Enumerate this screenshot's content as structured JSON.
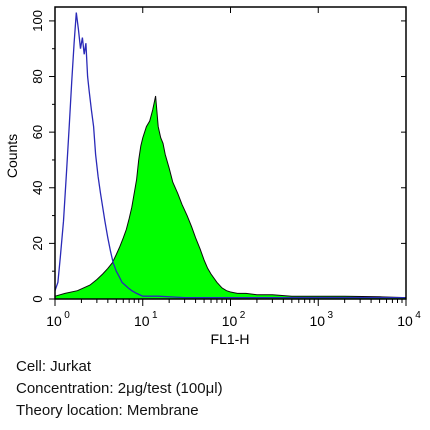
{
  "chart_data": {
    "type": "area",
    "xlabel": "FL1-H",
    "ylabel": "Counts",
    "x_scale": "log",
    "xlim": [
      1,
      10000
    ],
    "ylim": [
      0,
      105
    ],
    "x_ticks": [
      {
        "value": 1,
        "base": "10",
        "exp": "0"
      },
      {
        "value": 10,
        "base": "10",
        "exp": "1"
      },
      {
        "value": 100,
        "base": "10",
        "exp": "2"
      },
      {
        "value": 1000,
        "base": "10",
        "exp": "3"
      },
      {
        "value": 10000,
        "base": "10",
        "exp": "4"
      }
    ],
    "y_ticks": [
      "0",
      "20",
      "40",
      "60",
      "80",
      "100"
    ],
    "y_tick_values": [
      0,
      20,
      40,
      60,
      80,
      100
    ],
    "grid": false,
    "series": [
      {
        "style": "outline",
        "color": "#2a2ab8",
        "x": [
          1.0,
          1.08,
          1.15,
          1.25,
          1.35,
          1.45,
          1.55,
          1.65,
          1.75,
          1.85,
          1.95,
          2.05,
          2.15,
          2.25,
          2.35,
          2.45,
          2.6,
          2.75,
          2.9,
          3.1,
          3.3,
          3.5,
          3.7,
          4.0,
          4.3,
          4.6,
          5.0,
          5.4,
          5.8,
          6.3,
          6.8,
          7.5,
          8.5,
          10,
          15,
          30,
          100,
          1000,
          10000
        ],
        "y": [
          3,
          6,
          15,
          28,
          45,
          62,
          78,
          92,
          103,
          97,
          90,
          94,
          88,
          92,
          80,
          75,
          68,
          62,
          52,
          44,
          38,
          33,
          28,
          22,
          17,
          13,
          10,
          8,
          6,
          5,
          4,
          3,
          2,
          1,
          1,
          0.5,
          0.5,
          0.5,
          0.5
        ]
      },
      {
        "style": "filled",
        "color": "#00ff00",
        "x": [
          1.0,
          1.3,
          1.8,
          2.5,
          3.0,
          3.5,
          4.0,
          4.5,
          5.0,
          5.5,
          6.0,
          6.5,
          7.0,
          7.5,
          8.0,
          8.5,
          9.0,
          9.5,
          10,
          11,
          12,
          13,
          14,
          15,
          16,
          17,
          18,
          20,
          22,
          25,
          28,
          32,
          36,
          40,
          45,
          50,
          55,
          60,
          70,
          80,
          90,
          100,
          120,
          150,
          200,
          300,
          500,
          1000,
          2000,
          5000,
          10000
        ],
        "y": [
          1,
          2,
          3,
          5,
          7,
          9,
          11,
          13,
          16,
          19,
          22,
          25,
          29,
          33,
          38,
          43,
          50,
          55,
          58,
          62,
          64,
          68,
          73,
          62,
          58,
          56,
          52,
          47,
          42,
          38,
          34,
          30,
          26,
          22,
          18,
          14,
          11,
          9,
          6,
          4,
          3,
          2.5,
          2,
          2,
          1.5,
          1.5,
          1,
          1,
          1,
          0.8,
          0.5
        ]
      }
    ]
  },
  "caption": {
    "cell": "Cell: Jurkat",
    "concentration": "Concentration: 2μg/test (100μl)",
    "location": "Theory location: Membrane"
  }
}
